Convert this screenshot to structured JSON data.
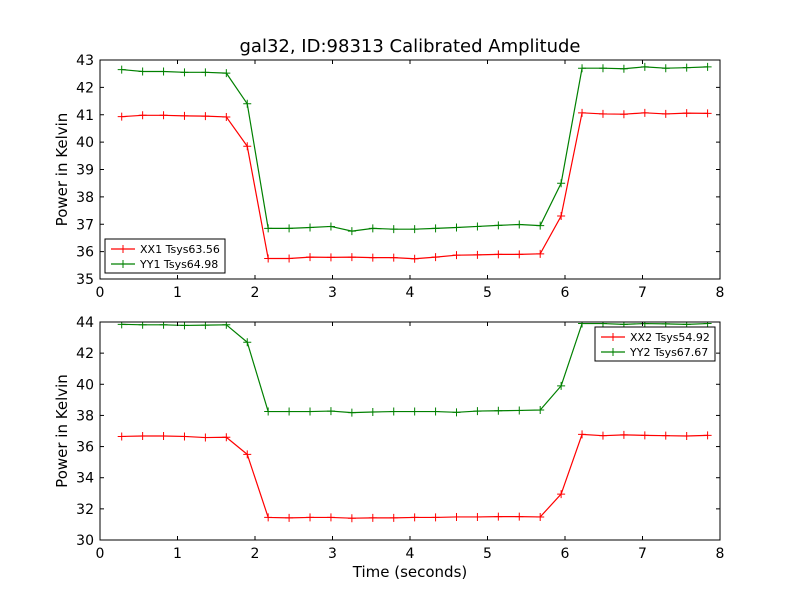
{
  "chart_data": [
    {
      "type": "line",
      "title": "gal32, ID:98313 Calibrated Amplitude",
      "xlabel": "",
      "ylabel": "Power in Kelvin",
      "xlim": [
        0,
        8
      ],
      "ylim": [
        35,
        43
      ],
      "xticks": [
        "0",
        "1",
        "2",
        "3",
        "4",
        "5",
        "6",
        "7",
        "8"
      ],
      "yticks": [
        "35",
        "36",
        "37",
        "38",
        "39",
        "40",
        "41",
        "42",
        "43"
      ],
      "grid": false,
      "legend_position": "lower-left",
      "x": [
        0.28,
        0.55,
        0.82,
        1.09,
        1.36,
        1.63,
        1.9,
        2.17,
        2.44,
        2.71,
        2.98,
        3.25,
        3.52,
        3.79,
        4.06,
        4.33,
        4.6,
        4.87,
        5.14,
        5.41,
        5.68,
        5.95,
        6.22,
        6.49,
        6.76,
        7.03,
        7.3,
        7.57,
        7.84
      ],
      "series": [
        {
          "name": "XX1 Tsys63.56",
          "color": "#ff0000",
          "values": [
            40.93,
            40.98,
            40.98,
            40.96,
            40.95,
            40.92,
            39.85,
            35.75,
            35.75,
            35.8,
            35.79,
            35.8,
            35.78,
            35.78,
            35.74,
            35.8,
            35.87,
            35.88,
            35.9,
            35.9,
            35.92,
            37.3,
            41.07,
            41.03,
            41.02,
            41.07,
            41.03,
            41.06,
            41.05
          ]
        },
        {
          "name": "YY1 Tsys64.98",
          "color": "#008000",
          "values": [
            42.65,
            42.58,
            42.58,
            42.55,
            42.55,
            42.52,
            41.4,
            36.85,
            36.85,
            36.88,
            36.92,
            36.75,
            36.85,
            36.82,
            36.82,
            36.85,
            36.88,
            36.92,
            36.96,
            36.99,
            36.95,
            38.5,
            42.7,
            42.7,
            42.68,
            42.75,
            42.7,
            42.72,
            42.75
          ]
        }
      ]
    },
    {
      "type": "line",
      "title": "",
      "xlabel": "Time (seconds)",
      "ylabel": "Power in Kelvin",
      "xlim": [
        0,
        8
      ],
      "ylim": [
        30,
        44
      ],
      "xticks": [
        "0",
        "1",
        "2",
        "3",
        "4",
        "5",
        "6",
        "7",
        "8"
      ],
      "yticks": [
        "30",
        "32",
        "34",
        "36",
        "38",
        "40",
        "42",
        "44"
      ],
      "grid": false,
      "legend_position": "upper-right",
      "x": [
        0.28,
        0.55,
        0.82,
        1.09,
        1.36,
        1.63,
        1.9,
        2.17,
        2.44,
        2.71,
        2.98,
        3.25,
        3.52,
        3.79,
        4.06,
        4.33,
        4.6,
        4.87,
        5.14,
        5.41,
        5.68,
        5.95,
        6.22,
        6.49,
        6.76,
        7.03,
        7.3,
        7.57,
        7.84
      ],
      "series": [
        {
          "name": "XX2 Tsys54.92",
          "color": "#ff0000",
          "values": [
            36.65,
            36.68,
            36.68,
            36.65,
            36.58,
            36.6,
            35.5,
            31.45,
            31.42,
            31.45,
            31.45,
            31.4,
            31.42,
            31.42,
            31.45,
            31.45,
            31.48,
            31.48,
            31.5,
            31.5,
            31.48,
            32.95,
            36.78,
            36.7,
            36.75,
            36.72,
            36.7,
            36.68,
            36.72
          ]
        },
        {
          "name": "YY2 Tsys67.67",
          "color": "#008000",
          "values": [
            43.85,
            43.82,
            43.82,
            43.78,
            43.8,
            43.82,
            42.7,
            38.25,
            38.25,
            38.25,
            38.28,
            38.18,
            38.22,
            38.25,
            38.25,
            38.25,
            38.2,
            38.28,
            38.3,
            38.32,
            38.35,
            39.9,
            43.9,
            43.9,
            43.85,
            43.9,
            43.88,
            43.85,
            43.9
          ]
        }
      ]
    }
  ]
}
